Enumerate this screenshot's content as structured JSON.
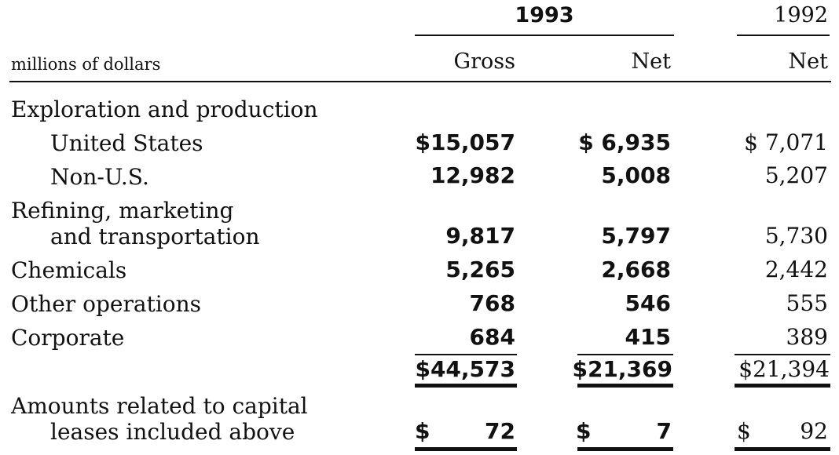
{
  "header": {
    "year_current": "1993",
    "year_prior": "1992",
    "units_label": "millions of dollars",
    "col_gross": "Gross",
    "col_net_current": "Net",
    "col_net_prior": "Net"
  },
  "rows": [
    {
      "label": "Exploration and production",
      "gross": "",
      "net": "",
      "prior": ""
    },
    {
      "label": "United States",
      "gross": "$15,057",
      "net": "$ 6,935",
      "prior": "$ 7,071"
    },
    {
      "label": "Non-U.S.",
      "gross": "12,982",
      "net": "5,008",
      "prior": "5,207"
    },
    {
      "label": "Refining, marketing",
      "gross": "",
      "net": "",
      "prior": ""
    },
    {
      "label": "and transportation",
      "gross": "9,817",
      "net": "5,797",
      "prior": "5,730"
    },
    {
      "label": "Chemicals",
      "gross": "5,265",
      "net": "2,668",
      "prior": "2,442"
    },
    {
      "label": "Other operations",
      "gross": "768",
      "net": "546",
      "prior": "555"
    },
    {
      "label": "Corporate",
      "gross": "684",
      "net": "415",
      "prior": "389"
    }
  ],
  "total": {
    "gross": "$44,573",
    "net": "$21,369",
    "prior": "$21,394"
  },
  "capital_leases": {
    "label_line1": "Amounts related to capital",
    "label_line2": "leases included above",
    "gross_symbol": "$",
    "gross": "72",
    "net_symbol": "$",
    "net": "7",
    "prior_symbol": "$",
    "prior": "92"
  }
}
